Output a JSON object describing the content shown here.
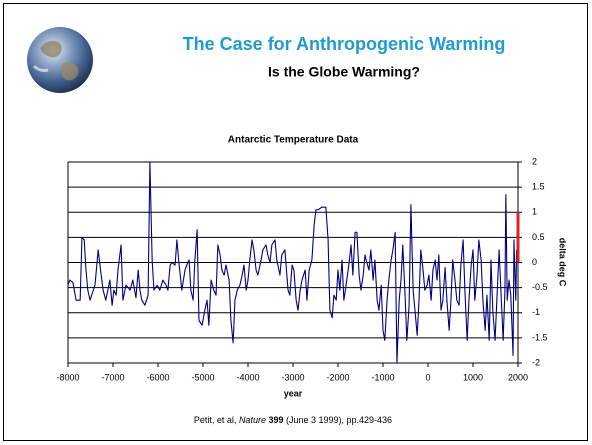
{
  "slide": {
    "title": "The Case for Anthropogenic Warming",
    "subtitle": "Is the Globe Warming?",
    "caption": [
      "Petit, et al, ",
      "Nature",
      " 399",
      " (June 3 1999), pp.429-436"
    ]
  },
  "chart_data": {
    "type": "line",
    "title": "Antarctic Temperature Data",
    "xlabel": "year",
    "ylabel": "delta deg C",
    "y_axis_side": "right",
    "grid": true,
    "color": "#000080",
    "xlim": [
      -8000,
      2000
    ],
    "xticks": [
      -8000,
      -7000,
      -6000,
      -5000,
      -4000,
      -3000,
      -2000,
      -1000,
      0,
      1000,
      2000
    ],
    "ylim": [
      -2,
      2
    ],
    "yticks": [
      -2,
      -1.5,
      -1,
      -0.5,
      0,
      0.5,
      1,
      1.5,
      2
    ],
    "range_marker": {
      "x": 2000,
      "y": [
        0,
        1
      ],
      "color": "#e02020"
    },
    "x": [
      -8000,
      -7960,
      -7890,
      -7820,
      -7730,
      -7690,
      -7640,
      -7600,
      -7560,
      -7510,
      -7400,
      -7330,
      -7290,
      -7220,
      -7160,
      -7070,
      -7020,
      -6980,
      -6930,
      -6890,
      -6820,
      -6780,
      -6710,
      -6620,
      -6560,
      -6490,
      -6440,
      -6400,
      -6360,
      -6290,
      -6220,
      -6180,
      -6130,
      -6090,
      -6020,
      -5960,
      -5890,
      -5820,
      -5780,
      -5730,
      -5690,
      -5620,
      -5580,
      -5530,
      -5470,
      -5400,
      -5360,
      -5310,
      -5270,
      -5220,
      -5180,
      -5130,
      -5090,
      -5020,
      -4960,
      -4910,
      -4870,
      -4820,
      -4760,
      -4710,
      -4670,
      -4620,
      -4580,
      -4530,
      -4490,
      -4420,
      -4380,
      -4330,
      -4290,
      -4240,
      -4180,
      -4130,
      -4090,
      -4040,
      -4000,
      -3960,
      -3910,
      -3870,
      -3820,
      -3780,
      -3710,
      -3670,
      -3600,
      -3560,
      -3510,
      -3470,
      -3400,
      -3360,
      -3290,
      -3250,
      -3180,
      -3110,
      -3070,
      -3020,
      -2980,
      -2930,
      -2890,
      -2840,
      -2800,
      -2730,
      -2690,
      -2640,
      -2580,
      -2530,
      -2490,
      -2440,
      -2360,
      -2270,
      -2220,
      -2180,
      -2130,
      -2090,
      -2040,
      -2000,
      -1960,
      -1910,
      -1870,
      -1820,
      -1760,
      -1710,
      -1670,
      -1620,
      -1580,
      -1530,
      -1490,
      -1440,
      -1400,
      -1360,
      -1310,
      -1270,
      -1220,
      -1180,
      -1130,
      -1090,
      -1040,
      -1000,
      -960,
      -910,
      -870,
      -820,
      -780,
      -730,
      -690,
      -640,
      -600,
      -560,
      -510,
      -470,
      -420,
      -380,
      -330,
      -290,
      -240,
      -200,
      -160,
      -110,
      -70,
      -20,
      20,
      70,
      110,
      160,
      200,
      240,
      290,
      330,
      380,
      420,
      470,
      510,
      550,
      600,
      640,
      690,
      730,
      780,
      820,
      870,
      910,
      960,
      1000,
      1040,
      1090,
      1130,
      1180,
      1220,
      1270,
      1310,
      1360,
      1400,
      1440,
      1490,
      1530,
      1580,
      1620,
      1670,
      1710,
      1730,
      1760,
      1800,
      1840,
      1890,
      1910,
      1950,
      1970,
      1990
    ],
    "values": [
      -0.45,
      -0.35,
      -0.4,
      -0.75,
      -0.75,
      0.5,
      0.45,
      -0.15,
      -0.55,
      -0.75,
      -0.45,
      0.25,
      -0.05,
      -0.55,
      -0.75,
      -0.35,
      -0.85,
      -0.55,
      -0.65,
      -0.15,
      0.35,
      -0.75,
      -0.45,
      -0.55,
      -0.35,
      -0.7,
      -0.15,
      -0.55,
      -0.75,
      -0.85,
      -0.65,
      2.0,
      0.05,
      -0.55,
      -0.45,
      -0.55,
      -0.35,
      -0.45,
      -0.55,
      -0.05,
      0,
      -0.05,
      0.45,
      -0.05,
      -0.55,
      -0.15,
      -0.05,
      0.05,
      -0.55,
      -0.75,
      0.05,
      0.65,
      -1.15,
      -1.25,
      -0.95,
      -0.75,
      -1.25,
      -0.35,
      -0.55,
      -0.65,
      0.35,
      0.15,
      -0.15,
      -0.25,
      -0.05,
      -0.35,
      -1.15,
      -1.6,
      -0.75,
      -0.55,
      -0.45,
      -0.25,
      -0.05,
      -0.55,
      -0.35,
      0.05,
      0.45,
      0.25,
      -0.15,
      -0.25,
      0.05,
      0.25,
      0.35,
      0.15,
      0,
      0.35,
      0.45,
      0.05,
      -0.25,
      0.15,
      0.25,
      -0.55,
      -0.65,
      -0.05,
      -0.15,
      -0.75,
      -0.95,
      -0.55,
      -0.35,
      -0.15,
      -0.75,
      -0.15,
      0.05,
      0.75,
      1.05,
      1.05,
      1.1,
      1.1,
      0.45,
      -0.95,
      -1.1,
      -0.65,
      -0.75,
      -0.15,
      -0.55,
      0.05,
      -0.75,
      -0.45,
      -0.05,
      0.35,
      -0.25,
      0.6,
      0.6,
      -0.25,
      -0.55,
      -0.25,
      0.15,
      0,
      -0.15,
      0.25,
      -0.35,
      0.05,
      -0.75,
      -0.95,
      -0.45,
      -1.35,
      -1.55,
      -0.75,
      -0.35,
      0.05,
      0.25,
      0.6,
      -2.0,
      -0.75,
      -0.35,
      0.35,
      -0.65,
      -1.55,
      -0.85,
      1.15,
      -0.55,
      -0.95,
      -1.45,
      -0.75,
      0.25,
      -0.15,
      -0.55,
      -0.45,
      -0.25,
      -0.75,
      -0.15,
      0.05,
      -0.35,
      0.15,
      -0.95,
      -0.75,
      -0.1,
      -0.75,
      -1.35,
      -0.75,
      0.05,
      -0.35,
      -0.75,
      -0.85,
      -0.05,
      0.45,
      -0.55,
      -1.55,
      -0.75,
      -0.05,
      0.25,
      -0.75,
      -0.25,
      0.45,
      0.05,
      -0.75,
      -1.35,
      -0.65,
      -1.55,
      0.05,
      -0.95,
      -1.55,
      -0.75,
      0.25,
      -0.55,
      -1.55,
      -0.55,
      1.35,
      -0.75,
      -0.35,
      -0.65,
      -1.85,
      0.45,
      -0.75,
      0.25,
      0
    ]
  }
}
